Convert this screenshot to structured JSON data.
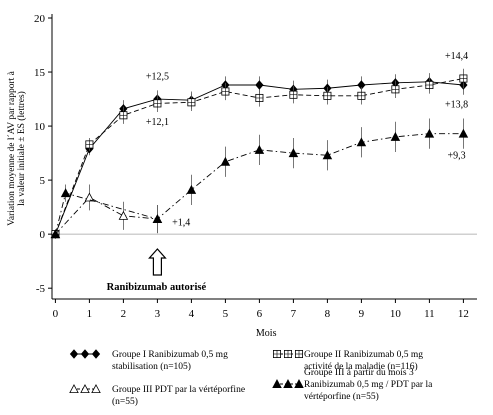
{
  "chart_data": {
    "type": "line",
    "title": "",
    "xlabel": "Mois",
    "ylabel_lines": [
      "Variation moyenne de l´AV par rapport à",
      "la valeur initiale ± ES (lettres)"
    ],
    "x_ticks": [
      0,
      1,
      2,
      3,
      4,
      5,
      6,
      7,
      8,
      9,
      10,
      11,
      12
    ],
    "y_ticks": [
      -5,
      0,
      5,
      10,
      15,
      20
    ],
    "xlim": [
      -0.1,
      12.4
    ],
    "ylim": [
      -6,
      20
    ],
    "zero_line": true,
    "series": [
      {
        "name_lines": [
          "Groupe I Ranibizumab 0,5 mg",
          "stabilisation (n=105)"
        ],
        "style": "solid",
        "marker": "diamond-filled",
        "x": [
          0,
          1,
          2,
          3,
          4,
          5,
          6,
          7,
          8,
          9,
          10,
          11,
          12
        ],
        "y": [
          0,
          7.9,
          11.6,
          12.5,
          12.4,
          13.8,
          13.8,
          13.4,
          13.5,
          13.8,
          14.0,
          14.1,
          13.8
        ],
        "err": [
          0,
          0.6,
          0.8,
          0.8,
          0.8,
          0.8,
          0.8,
          0.8,
          0.8,
          0.8,
          0.8,
          0.8,
          0.9
        ]
      },
      {
        "name_lines": [
          "Groupe II Ranibizumab 0,5 mg",
          "activité de la maladie (n=116)"
        ],
        "style": "dashed",
        "marker": "square-open",
        "x": [
          0,
          1,
          2,
          3,
          4,
          5,
          6,
          7,
          8,
          9,
          10,
          11,
          12
        ],
        "y": [
          0,
          8.3,
          11.0,
          12.1,
          12.2,
          13.2,
          12.6,
          12.9,
          12.8,
          12.8,
          13.4,
          13.8,
          14.4
        ],
        "err": [
          0,
          0.6,
          0.8,
          0.8,
          0.8,
          0.8,
          0.8,
          0.8,
          0.8,
          0.8,
          0.8,
          0.8,
          0.9
        ]
      },
      {
        "name_lines": [
          "Groupe III PDT par la vértéporfine",
          "(n=55)"
        ],
        "style": "dashdot",
        "marker": "triangle-open",
        "x": [
          0,
          1,
          2,
          3
        ],
        "y": [
          0,
          3.4,
          1.7,
          1.4
        ],
        "err": [
          0,
          1.2,
          1.3,
          1.3
        ]
      },
      {
        "name_lines": [
          "Groupe III à partir du mois 3",
          "Ranibizumab 0,5 mg / PDT par la",
          "vértéporfine (n=55)"
        ],
        "style": "dashdot",
        "marker": "triangle-filled",
        "x": [
          0,
          0.3,
          3,
          4,
          5,
          6,
          7,
          8,
          9,
          10,
          11,
          12
        ],
        "y": [
          0,
          3.8,
          1.4,
          4.1,
          6.7,
          7.8,
          7.5,
          7.3,
          8.5,
          9.0,
          9.3,
          9.3
        ],
        "err": [
          0,
          0.8,
          1.3,
          1.4,
          1.4,
          1.4,
          1.4,
          1.4,
          1.4,
          1.4,
          1.4,
          1.4
        ]
      }
    ],
    "annotations": [
      {
        "text": "+12,5",
        "x": 3.0,
        "y": 14.3
      },
      {
        "text": "+12,1",
        "x": 3.0,
        "y": 10.1
      },
      {
        "text": "+14,4",
        "x": 11.8,
        "y": 16.2
      },
      {
        "text": "+13,8",
        "x": 11.8,
        "y": 11.7
      },
      {
        "text": "+9,3",
        "x": 11.8,
        "y": 7.0
      },
      {
        "text": "+1,4",
        "x": 3.7,
        "y": 0.8
      }
    ],
    "arrow": {
      "label": "Ranibizumab autorisé",
      "x": 3
    }
  }
}
